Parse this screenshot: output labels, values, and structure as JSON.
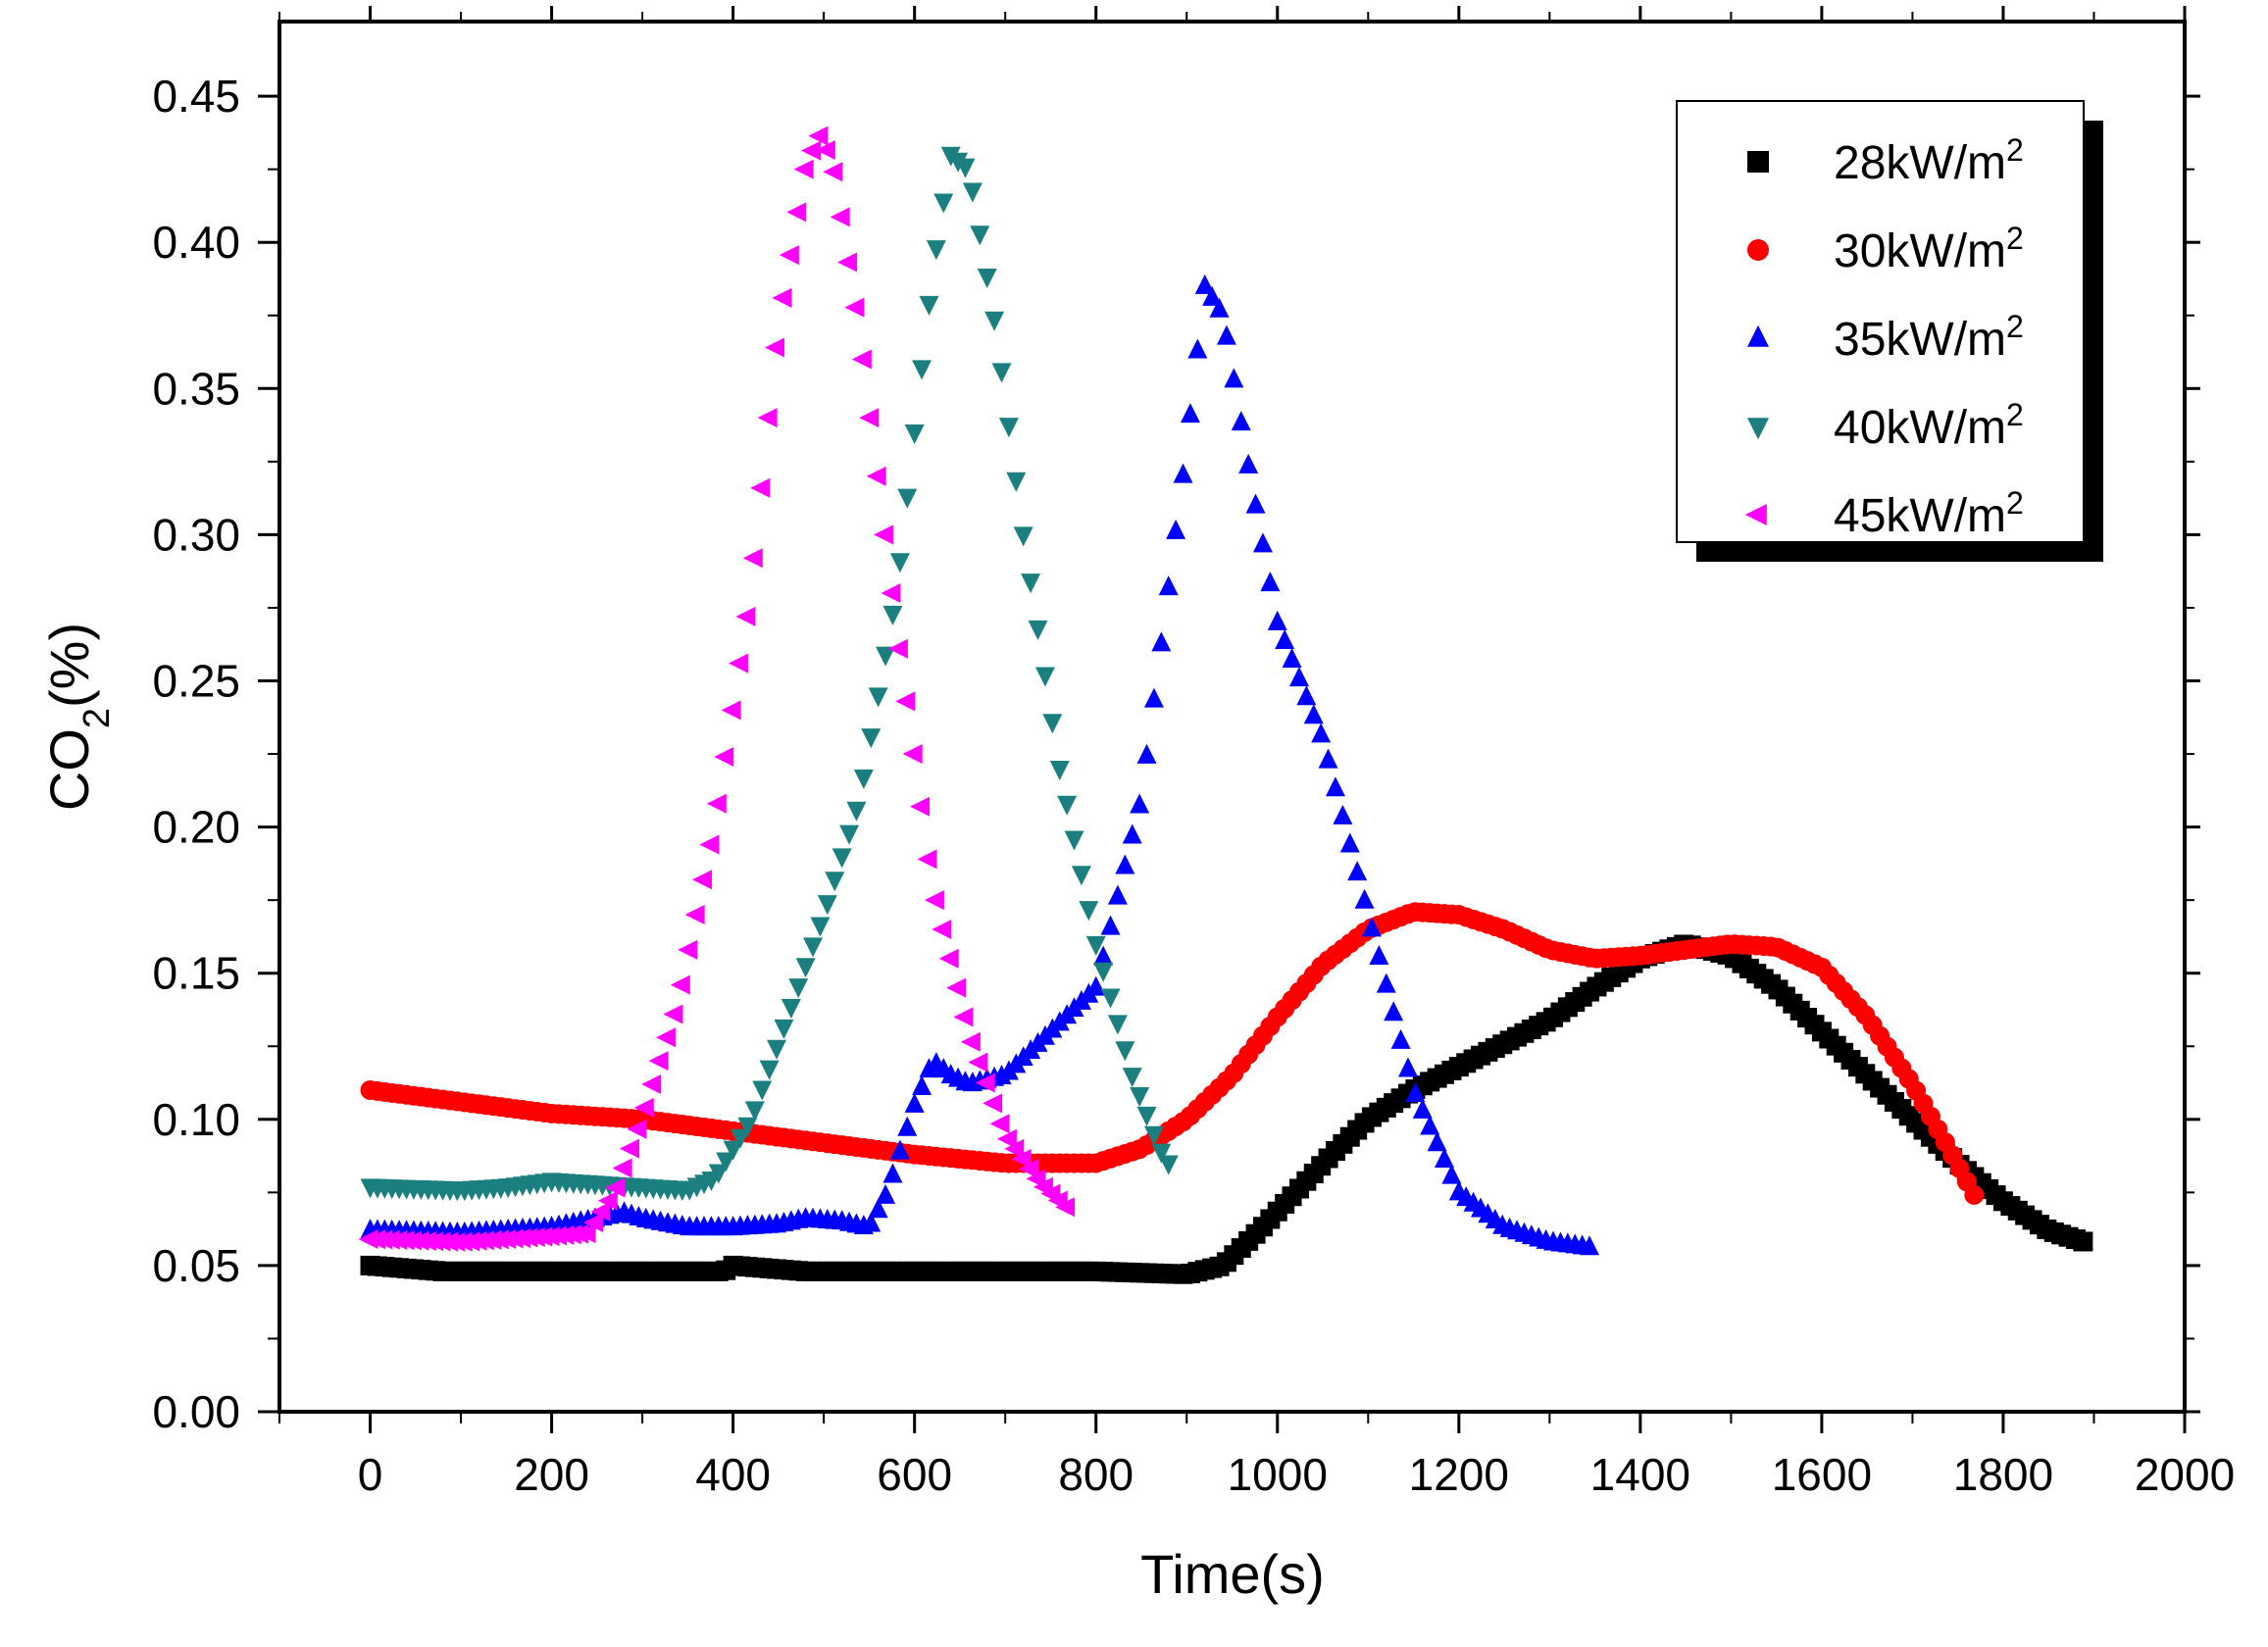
{
  "chart_data": {
    "type": "scatter",
    "title": "",
    "xlabel": "Time(s)",
    "ylabel_main": "CO",
    "ylabel_sub": "2",
    "ylabel_tail": "(%)",
    "xlim": [
      -100,
      2000
    ],
    "ylim": [
      0,
      0.46
    ],
    "xticks": [
      0,
      200,
      400,
      600,
      800,
      1000,
      1200,
      1400,
      1600,
      1800,
      2000
    ],
    "yticks": [
      0.0,
      0.05,
      0.1,
      0.15,
      0.2,
      0.25,
      0.3,
      0.35,
      0.4,
      0.45
    ],
    "xtick_labels": [
      "0",
      "200",
      "400",
      "600",
      "800",
      "1000",
      "1200",
      "1400",
      "1600",
      "1800",
      "2000"
    ],
    "ytick_labels": [
      "0.00",
      "0.05",
      "0.10",
      "0.15",
      "0.20",
      "0.25",
      "0.30",
      "0.35",
      "0.40",
      "0.45"
    ],
    "legend_position": "top-right",
    "legend_unit_superscript": "2",
    "series": [
      {
        "name": "28kW/m",
        "marker": "square",
        "color": "#000000",
        "points": [
          [
            0,
            0.05
          ],
          [
            40,
            0.049
          ],
          [
            80,
            0.048
          ],
          [
            200,
            0.048
          ],
          [
            300,
            0.048
          ],
          [
            390,
            0.048
          ],
          [
            400,
            0.05
          ],
          [
            440,
            0.049
          ],
          [
            480,
            0.048
          ],
          [
            600,
            0.048
          ],
          [
            700,
            0.048
          ],
          [
            800,
            0.048
          ],
          [
            900,
            0.047
          ],
          [
            940,
            0.05
          ],
          [
            980,
            0.062
          ],
          [
            1020,
            0.075
          ],
          [
            1060,
            0.088
          ],
          [
            1100,
            0.1
          ],
          [
            1150,
            0.11
          ],
          [
            1200,
            0.118
          ],
          [
            1250,
            0.126
          ],
          [
            1300,
            0.134
          ],
          [
            1350,
            0.145
          ],
          [
            1400,
            0.155
          ],
          [
            1450,
            0.16
          ],
          [
            1500,
            0.156
          ],
          [
            1550,
            0.145
          ],
          [
            1600,
            0.13
          ],
          [
            1650,
            0.115
          ],
          [
            1700,
            0.1
          ],
          [
            1750,
            0.085
          ],
          [
            1800,
            0.072
          ],
          [
            1850,
            0.062
          ],
          [
            1890,
            0.058
          ]
        ]
      },
      {
        "name": "30kW/m",
        "marker": "circle",
        "color": "#ff0000",
        "points": [
          [
            0,
            0.11
          ],
          [
            100,
            0.106
          ],
          [
            200,
            0.102
          ],
          [
            300,
            0.1
          ],
          [
            400,
            0.096
          ],
          [
            500,
            0.092
          ],
          [
            600,
            0.088
          ],
          [
            700,
            0.085
          ],
          [
            800,
            0.085
          ],
          [
            850,
            0.09
          ],
          [
            900,
            0.1
          ],
          [
            950,
            0.115
          ],
          [
            1000,
            0.135
          ],
          [
            1050,
            0.153
          ],
          [
            1100,
            0.165
          ],
          [
            1150,
            0.171
          ],
          [
            1200,
            0.17
          ],
          [
            1250,
            0.165
          ],
          [
            1300,
            0.158
          ],
          [
            1350,
            0.155
          ],
          [
            1400,
            0.156
          ],
          [
            1450,
            0.158
          ],
          [
            1500,
            0.16
          ],
          [
            1550,
            0.159
          ],
          [
            1600,
            0.152
          ],
          [
            1650,
            0.135
          ],
          [
            1700,
            0.112
          ],
          [
            1740,
            0.09
          ],
          [
            1770,
            0.073
          ]
        ]
      },
      {
        "name": "35kW/m",
        "marker": "triangle-up",
        "color": "#0000ff",
        "points": [
          [
            0,
            0.062
          ],
          [
            100,
            0.061
          ],
          [
            200,
            0.063
          ],
          [
            250,
            0.066
          ],
          [
            280,
            0.068
          ],
          [
            300,
            0.066
          ],
          [
            350,
            0.063
          ],
          [
            400,
            0.063
          ],
          [
            450,
            0.064
          ],
          [
            480,
            0.066
          ],
          [
            520,
            0.065
          ],
          [
            550,
            0.063
          ],
          [
            570,
            0.075
          ],
          [
            600,
            0.105
          ],
          [
            620,
            0.12
          ],
          [
            640,
            0.115
          ],
          [
            660,
            0.112
          ],
          [
            700,
            0.115
          ],
          [
            750,
            0.13
          ],
          [
            800,
            0.145
          ],
          [
            850,
            0.21
          ],
          [
            900,
            0.33
          ],
          [
            920,
            0.385
          ],
          [
            940,
            0.375
          ],
          [
            970,
            0.32
          ],
          [
            1000,
            0.27
          ],
          [
            1050,
            0.23
          ],
          [
            1100,
            0.17
          ],
          [
            1150,
            0.11
          ],
          [
            1200,
            0.075
          ],
          [
            1250,
            0.063
          ],
          [
            1300,
            0.058
          ],
          [
            1350,
            0.056
          ]
        ]
      },
      {
        "name": "40kW/m",
        "marker": "triangle-down",
        "color": "#1b7f7f",
        "points": [
          [
            0,
            0.077
          ],
          [
            100,
            0.076
          ],
          [
            150,
            0.077
          ],
          [
            200,
            0.079
          ],
          [
            250,
            0.078
          ],
          [
            300,
            0.077
          ],
          [
            350,
            0.076
          ],
          [
            380,
            0.08
          ],
          [
            420,
            0.1
          ],
          [
            460,
            0.135
          ],
          [
            500,
            0.17
          ],
          [
            540,
            0.21
          ],
          [
            580,
            0.28
          ],
          [
            620,
            0.39
          ],
          [
            640,
            0.43
          ],
          [
            660,
            0.425
          ],
          [
            690,
            0.37
          ],
          [
            720,
            0.3
          ],
          [
            760,
            0.22
          ],
          [
            800,
            0.16
          ],
          [
            840,
            0.115
          ],
          [
            870,
            0.09
          ],
          [
            880,
            0.085
          ]
        ]
      },
      {
        "name": "45kW/m",
        "marker": "triangle-left",
        "color": "#ff00ff",
        "points": [
          [
            0,
            0.059
          ],
          [
            100,
            0.058
          ],
          [
            200,
            0.06
          ],
          [
            240,
            0.061
          ],
          [
            270,
            0.075
          ],
          [
            300,
            0.1
          ],
          [
            340,
            0.14
          ],
          [
            380,
            0.2
          ],
          [
            420,
            0.28
          ],
          [
            450,
            0.37
          ],
          [
            480,
            0.425
          ],
          [
            495,
            0.437
          ],
          [
            510,
            0.428
          ],
          [
            540,
            0.37
          ],
          [
            580,
            0.27
          ],
          [
            620,
            0.18
          ],
          [
            660,
            0.13
          ],
          [
            700,
            0.095
          ],
          [
            740,
            0.078
          ],
          [
            775,
            0.068
          ]
        ]
      }
    ]
  }
}
